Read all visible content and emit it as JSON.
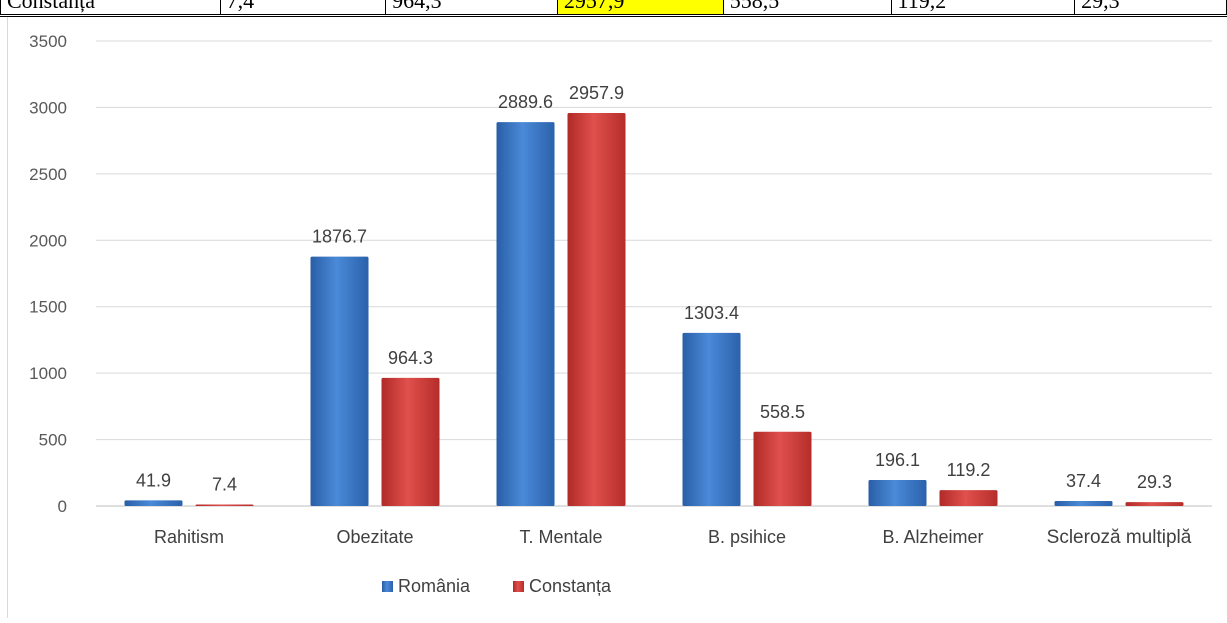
{
  "table_row": {
    "cells": [
      "Constanța",
      "7,4",
      "964,3",
      "2957,9",
      "558,5",
      "119,2",
      "29,3"
    ],
    "highlight_index": 3,
    "highlight_color": "#ffff00"
  },
  "chart_data": {
    "type": "bar",
    "categories": [
      "Rahitism",
      "Obezitate",
      "T. Mentale",
      "B. psihice",
      "B. Alzheimer",
      "Scleroză multiplă"
    ],
    "series": [
      {
        "name": "România",
        "color": "#3b78c8",
        "values": [
          41.9,
          1876.7,
          2889.6,
          1303.4,
          196.1,
          37.4
        ]
      },
      {
        "name": "Constanța",
        "color": "#d63b38",
        "values": [
          7.4,
          964.3,
          2957.9,
          558.5,
          119.2,
          29.3
        ]
      }
    ],
    "yticks": [
      0,
      500,
      1000,
      1500,
      2000,
      2500,
      3000,
      3500
    ],
    "ylim": [
      0,
      3500
    ],
    "grid": true,
    "legend_position": "bottom",
    "data_labels": true
  }
}
